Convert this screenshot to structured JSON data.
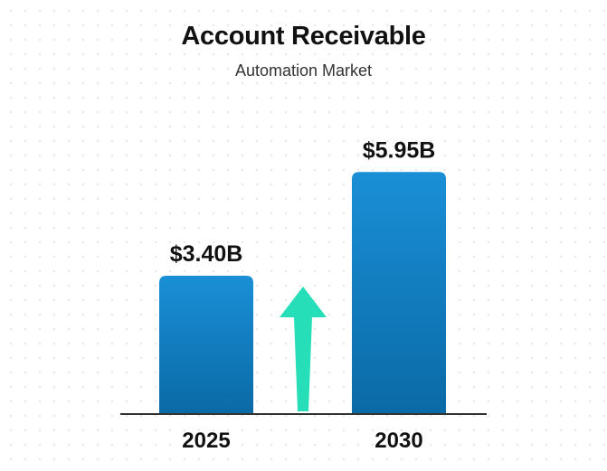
{
  "chart_data": {
    "type": "bar",
    "title": "Account Receivable",
    "subtitle": "Automation Market",
    "categories": [
      "2025",
      "2030"
    ],
    "values": [
      3.4,
      5.95
    ],
    "value_labels": [
      "$3.40B",
      "$5.95B"
    ],
    "xlabel": "",
    "ylabel": "",
    "ylim": [
      0,
      6.8
    ],
    "grid": false,
    "legend": "none",
    "annotations": [
      "up-arrow-icon"
    ]
  },
  "colors": {
    "bar_top": "#1a8fd6",
    "bar_bottom": "#0a6aa6",
    "arrow": "#26dfb9",
    "axis": "#333333",
    "text": "#111111"
  }
}
